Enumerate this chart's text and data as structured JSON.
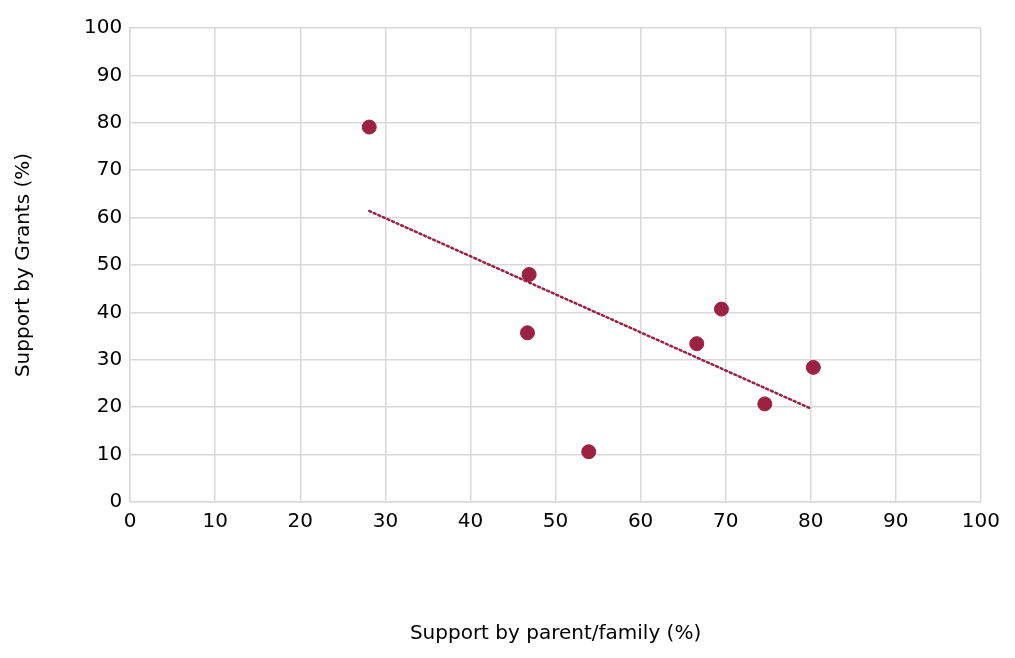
{
  "chart_data": {
    "type": "scatter",
    "xlabel": "Support by parent/family (%)",
    "ylabel": "Support by Grants (%)",
    "xlim": [
      0,
      100
    ],
    "ylim": [
      0,
      100
    ],
    "xticks": [
      0,
      10,
      20,
      30,
      40,
      50,
      60,
      70,
      80,
      90,
      100
    ],
    "yticks": [
      0,
      10,
      20,
      30,
      40,
      50,
      60,
      70,
      80,
      90,
      100
    ],
    "grid": true,
    "marker": "circle",
    "series": [
      {
        "type": "scatter",
        "color": "#9b2242",
        "x": [
          28.1,
          46.9,
          46.7,
          53.9,
          66.6,
          69.5,
          74.6,
          80.3
        ],
        "values": [
          79.1,
          48.0,
          35.7,
          10.6,
          33.4,
          40.7,
          20.7,
          28.4
        ]
      },
      {
        "type": "line",
        "color": "#9b2242",
        "line_style": "dotted",
        "marker": "none",
        "x": [
          28.1,
          79.9
        ],
        "values": [
          61.4,
          19.8
        ]
      }
    ]
  }
}
